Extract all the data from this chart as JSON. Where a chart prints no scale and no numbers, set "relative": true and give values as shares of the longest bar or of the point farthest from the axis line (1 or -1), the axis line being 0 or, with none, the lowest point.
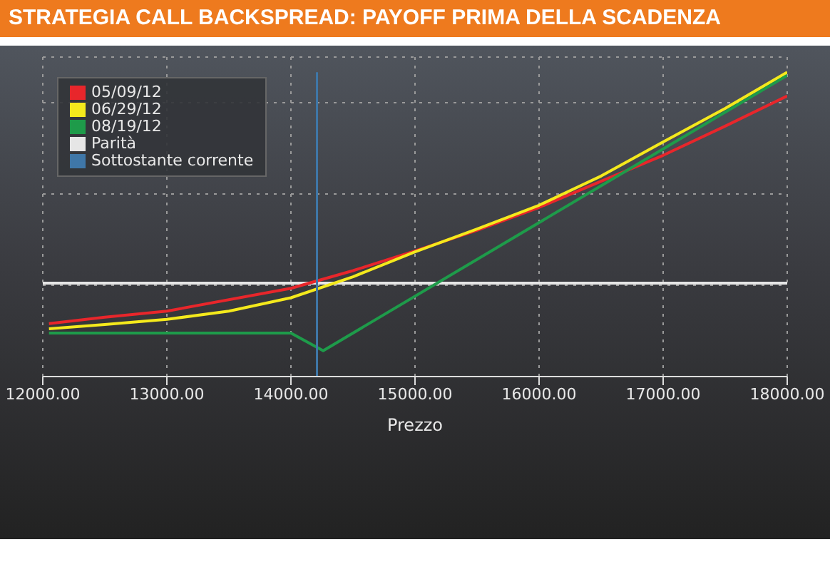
{
  "chart_data": {
    "type": "line",
    "title": "STRATEGIA CALL BACKSPREAD: PAYOFF PRIMA DELLA SCADENZA",
    "xlabel": "Prezzo",
    "relative": true,
    "xlim": [
      12000,
      18000
    ],
    "xticks": [
      {
        "value": 12000,
        "label": "12000.00"
      },
      {
        "value": 13000,
        "label": "13000.00"
      },
      {
        "value": 14000,
        "label": "14000.00"
      },
      {
        "value": 15000,
        "label": "15000.00"
      },
      {
        "value": 16000,
        "label": "16000.00"
      },
      {
        "value": 17000,
        "label": "17000.00"
      },
      {
        "value": 18000,
        "label": "18000.00"
      }
    ],
    "series": [
      {
        "name": "05/09/12",
        "color": "#e8262b",
        "x": [
          12050,
          12500,
          13000,
          14000,
          14500,
          15000,
          15500,
          16000,
          16500,
          17000,
          17500,
          18000
        ],
        "values": [
          0.174,
          0.195,
          0.215,
          0.29,
          0.348,
          0.413,
          0.481,
          0.556,
          0.642,
          0.727,
          0.823,
          0.922
        ]
      },
      {
        "name": "06/29/12",
        "color": "#f4e91c",
        "x": [
          12050,
          12500,
          13000,
          13500,
          14000,
          14500,
          15000,
          15500,
          16000,
          16500,
          17000,
          17500,
          18000
        ],
        "values": [
          0.157,
          0.171,
          0.188,
          0.215,
          0.259,
          0.328,
          0.41,
          0.485,
          0.563,
          0.659,
          0.771,
          0.881,
          1
        ]
      },
      {
        "name": "08/19/12",
        "color": "#1e9b4a",
        "x": [
          12050,
          14000,
          14260,
          18000
        ],
        "values": [
          0.143,
          0.143,
          0.085,
          0.99
        ]
      },
      {
        "name": "Sottostante corrente",
        "color": "#3f77a8",
        "x": [
          14210,
          14210
        ],
        "values": [
          0,
          1
        ]
      }
    ],
    "ref_lines": [
      {
        "axis": "y",
        "value": 0.307,
        "label": "Parità",
        "color": "#e6e6e6"
      }
    ],
    "grid": true,
    "legend": "top left",
    "line_style": "solid",
    "marker": "none"
  }
}
